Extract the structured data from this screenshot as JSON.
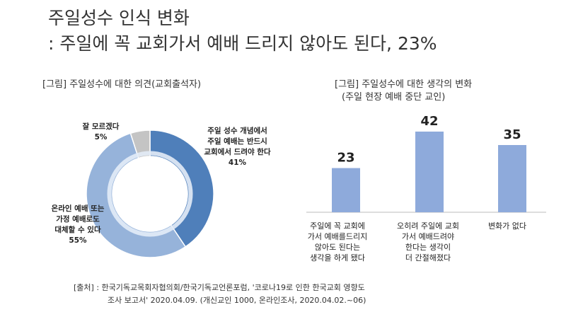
{
  "title": {
    "line1": "주일성수 인식 변화",
    "line2": ": 주일에 꼭 교회가서 예배 드리지 않아도 된다, 23%"
  },
  "left_caption": "[그림] 주일성수에 대한 의견(교회출석자)",
  "right_caption": {
    "line1": "[그림] 주일성수에 대한 생각의 변화",
    "line2": "(주일 현장 예배 중단 교인)"
  },
  "source": {
    "line1": "[출처] :  한국기독교목회자협의회/한국기독교언론포럼, '코로나19로 인한 한국교회 영향도",
    "line2": "조사 보고서' 2020.04.09. (개신교인 1000, 온라인조사, 2020.04.02.~06)"
  },
  "colors": {
    "dark_blue": "#4f7fba",
    "mid_blue": "#96b3da",
    "light_gray": "#c4c4c4",
    "bar_blue": "#8eaadb"
  },
  "chart_data": [
    {
      "type": "pie",
      "variant": "donut",
      "slices": [
        {
          "label_lines": [
            "주일 성수 개념에서",
            "주일 예배는 반드시",
            "교회에서 드려야 한다",
            "41%"
          ],
          "value": 41
        },
        {
          "label_lines": [
            "온라인 예배 또는",
            "가정 예배로도",
            "대체할 수 있다",
            "55%"
          ],
          "value": 55
        },
        {
          "label_lines": [
            "잘 모르겠다",
            "5%"
          ],
          "value": 5
        }
      ]
    },
    {
      "type": "bar",
      "categories": [
        {
          "lines": [
            "주일에 꼭 교회에",
            "가서 예배를드리지",
            "않아도 된다는",
            "생각을 하게 됐다"
          ]
        },
        {
          "lines": [
            "오히려 주일에 교회",
            "가서 예배드려야",
            "한다는 생각이",
            "더 간절해졌다"
          ]
        },
        {
          "lines": [
            "변화가 없다"
          ]
        }
      ],
      "values": [
        23,
        42,
        35
      ],
      "value_labels": [
        "23",
        "42",
        "35"
      ],
      "ylim": [
        0,
        42
      ]
    }
  ]
}
